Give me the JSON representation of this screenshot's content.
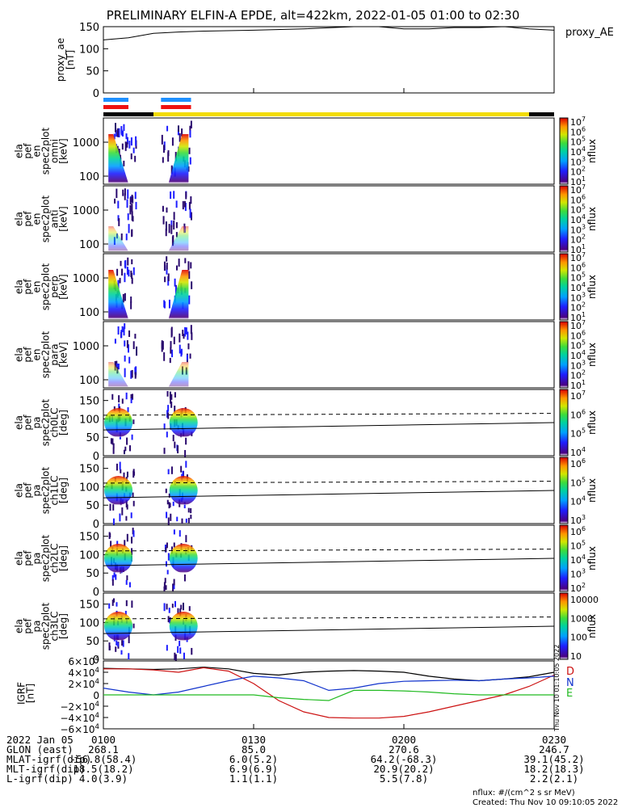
{
  "title": "PRELIMINARY ELFIN-A EPDE, alt=422km, 2022-01-05 01:00 to 02:30",
  "units_note": "nflux: #/(cm^2 s sr MeV)",
  "created": "Created: Thu Nov 10 09:10:05 2022",
  "side_stamp": "Thu Nov 10 01:10:05 2022",
  "colors": {
    "blue_bar": "#1e90ff",
    "red_bar": "#ee1111",
    "yellow_bar": "#f2dc00",
    "black_bar": "#000000",
    "grf_d": "#cc1111",
    "grf_n": "#1133cc",
    "grf_e": "#22bb22",
    "grf_total": "#000000"
  },
  "chart_data": [
    {
      "type": "line",
      "ylabel": "proxy_ae [nT]",
      "legend": "proxy_AE",
      "ylim": [
        0,
        150
      ],
      "yticks": [
        "0",
        "50",
        "100",
        "150"
      ],
      "x": [
        0,
        5,
        10,
        15,
        20,
        30,
        40,
        50,
        55,
        60,
        65,
        70,
        75,
        80,
        85,
        90
      ],
      "values": [
        120,
        125,
        135,
        138,
        140,
        142,
        145,
        150,
        150,
        145,
        145,
        148,
        148,
        150,
        145,
        142
      ]
    },
    {
      "type": "heatmap",
      "name": "energy-spectra",
      "panels": [
        {
          "label": [
            "ela",
            "pef",
            "en",
            "spec2plot",
            "omni",
            "[keV]"
          ],
          "cbar_ticks": [
            "10^7",
            "10^6",
            "10^5",
            "10^4",
            "10^3",
            "10^2",
            "10^1"
          ]
        },
        {
          "label": [
            "ela",
            "pef",
            "en",
            "spec2plot",
            "anti",
            "[keV]"
          ],
          "cbar_ticks": [
            "10^7",
            "10^6",
            "10^5",
            "10^4",
            "10^3",
            "10^2",
            "10^1"
          ]
        },
        {
          "label": [
            "ela",
            "pef",
            "en",
            "spec2plot",
            "perp",
            "[keV]"
          ],
          "cbar_ticks": [
            "10^7",
            "10^6",
            "10^5",
            "10^4",
            "10^3",
            "10^2",
            "10^1"
          ]
        },
        {
          "label": [
            "ela",
            "pef",
            "en",
            "spec2plot",
            "para",
            "[keV]"
          ],
          "cbar_ticks": [
            "10^7",
            "10^6",
            "10^5",
            "10^4",
            "10^3",
            "10^2",
            "10^1"
          ]
        }
      ],
      "yticks": [
        "100",
        "1000"
      ],
      "cbar_label": "nflux"
    },
    {
      "type": "heatmap",
      "name": "pitch-angle-spectra",
      "panels": [
        {
          "label": [
            "ela",
            "pef",
            "pa",
            "spec2plot",
            "ch0LC",
            "[deg]"
          ],
          "cbar_ticks": [
            "10^7",
            "10^6",
            "10^5",
            "10^4"
          ]
        },
        {
          "label": [
            "ela",
            "pef",
            "pa",
            "spec2plot",
            "ch1LC",
            "[deg]"
          ],
          "cbar_ticks": [
            "10^6",
            "10^5",
            "10^4",
            "10^3"
          ]
        },
        {
          "label": [
            "ela",
            "pef",
            "pa",
            "spec2plot",
            "ch2LC",
            "[deg]"
          ],
          "cbar_ticks": [
            "10^6",
            "10^5",
            "10^4",
            "10^3",
            "10^2"
          ]
        },
        {
          "label": [
            "ela",
            "pef",
            "pa",
            "spec2plot",
            "ch3LC",
            "[deg]"
          ],
          "cbar_ticks": [
            "10000",
            "1000",
            "100",
            "10"
          ]
        }
      ],
      "yticks": [
        "0",
        "50",
        "100",
        "150"
      ],
      "cbar_label": "nflux"
    },
    {
      "type": "line",
      "ylabel": "IGRF [nT]",
      "ylim": [
        -60000,
        60000
      ],
      "yticks": [
        "6×10^4",
        "4×10^4",
        "2×10^4",
        "0",
        "−2×10^4",
        "−4×10^4",
        "−6×10^4"
      ],
      "x": [
        0,
        5,
        10,
        15,
        20,
        25,
        30,
        35,
        40,
        45,
        50,
        55,
        60,
        65,
        70,
        75,
        80,
        85,
        90
      ],
      "series": [
        {
          "name": "D",
          "values": [
            46000,
            46000,
            44000,
            40000,
            48000,
            42000,
            20000,
            -10000,
            -30000,
            -40000,
            -41000,
            -41000,
            -38000,
            -30000,
            -20000,
            -10000,
            0,
            15000,
            35000
          ]
        },
        {
          "name": "N",
          "values": [
            12000,
            5000,
            0,
            5000,
            15000,
            25000,
            33000,
            30000,
            25000,
            8000,
            12000,
            20000,
            24000,
            25000,
            26000,
            25000,
            28000,
            30000,
            33000
          ]
        },
        {
          "name": "E",
          "values": [
            0,
            0,
            0,
            0,
            0,
            0,
            0,
            -5000,
            -8000,
            -10000,
            8000,
            8000,
            7000,
            5000,
            2000,
            0,
            0,
            0,
            0
          ]
        }
      ],
      "total": [
        47000,
        46000,
        45000,
        46000,
        49000,
        46000,
        38000,
        35000,
        40000,
        42000,
        43000,
        42000,
        40000,
        33000,
        28000,
        25000,
        28000,
        32000,
        40000
      ],
      "legend_position": "right"
    }
  ],
  "xaxis": {
    "range_min": [
      0,
      90
    ],
    "ticks": [
      {
        "label": "0100",
        "t": 0
      },
      {
        "label": "0130",
        "t": 30
      },
      {
        "label": "0200",
        "t": 60
      },
      {
        "label": "0230",
        "t": 90
      }
    ]
  },
  "footer": {
    "rows": [
      {
        "label": "2022 Jan 05",
        "values": [
          "0100",
          "0130",
          "0200",
          "0230"
        ]
      },
      {
        "label": "GLON (east)",
        "values": [
          "268.1",
          "85.0",
          "270.6",
          "246.7"
        ]
      },
      {
        "label": "MLAT-igrf(dip)",
        "values": [
          "-56.8(58.4)",
          "6.0(5.2)",
          "64.2(-68.3)",
          "39.1(45.2)"
        ]
      },
      {
        "label": "MLT-igrf(dip)",
        "values": [
          "18.5(18.2)",
          "6.9(6.9)",
          "20.9(20.2)",
          "18.2(18.3)"
        ]
      },
      {
        "label": "L-igrf(dip)",
        "values": [
          "4.0(3.9)",
          "1.1(1.1)",
          "5.5(7.8)",
          "2.2(2.1)"
        ]
      }
    ]
  },
  "status_bars": {
    "blue_segments": [
      [
        0,
        5
      ],
      [
        11.5,
        17.5
      ]
    ],
    "red_segments": [
      [
        0,
        5
      ],
      [
        11.5,
        17.5
      ]
    ],
    "state_bar": [
      {
        "color": "black_bar",
        "start": 0,
        "end": 10
      },
      {
        "color": "yellow_bar",
        "start": 10,
        "end": 85
      },
      {
        "color": "black_bar",
        "start": 85,
        "end": 90
      }
    ]
  }
}
